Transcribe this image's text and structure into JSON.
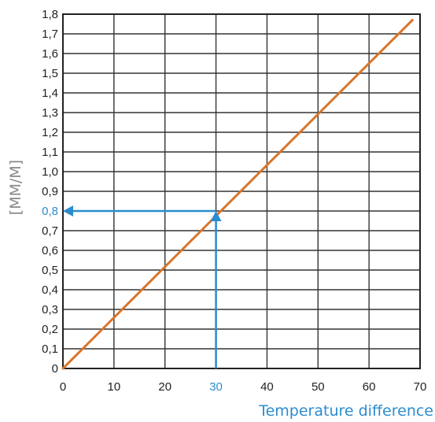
{
  "chart_data": {
    "type": "line",
    "title": "",
    "xlabel": "Temperature difference",
    "ylabel": "[MM/M]",
    "xlim": [
      0,
      70
    ],
    "ylim": [
      0,
      1.8
    ],
    "x_ticks": [
      "0",
      "10",
      "20",
      "30",
      "40",
      "50",
      "60",
      "70"
    ],
    "y_ticks": [
      "0",
      "0,1",
      "0,2",
      "0,3",
      "0,4",
      "0,5",
      "0,6",
      "0,7",
      "0,8",
      "0,9",
      "1,0",
      "1,1",
      "1,2",
      "1,3",
      "1,4",
      "1,5",
      "1,6",
      "1,7",
      "1,8"
    ],
    "grid": true,
    "series": [
      {
        "x": [
          0,
          68.5
        ],
        "y": [
          0,
          1.77
        ],
        "color": "#d9752b"
      }
    ],
    "annotation": {
      "x": 30,
      "y": 0.8,
      "x_label": "30",
      "y_label": "0,8",
      "color": "#2b8ccf"
    },
    "colors": {
      "axis_title": "#2b8ccf",
      "ylabel": "#888888",
      "grid": "#333333"
    }
  }
}
